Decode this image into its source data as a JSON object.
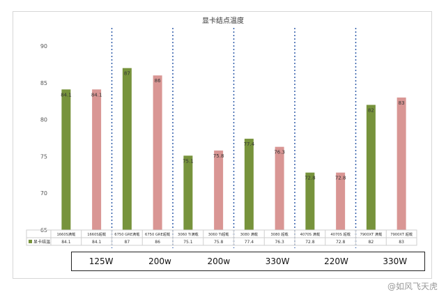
{
  "chart_data": {
    "type": "bar",
    "title": "显卡结点温度",
    "ylim": [
      65,
      90
    ],
    "yticks": [
      65,
      70,
      75,
      80,
      85,
      90
    ],
    "grid": false,
    "categories": [
      "1660S满载",
      "1660S超载",
      "6750 GRE满载",
      "6750 GRE超载",
      "3060 Ti满载",
      "3060 Ti超载",
      "3080 满载",
      "3080 超载",
      "4070S 满载",
      "4070S 超载",
      "7900XT 满载",
      "7900XT 超载"
    ],
    "series": [
      {
        "name": "显卡结温",
        "values": [
          84.1,
          84.1,
          87,
          86,
          75.1,
          75.8,
          77.4,
          76.3,
          72.8,
          72.8,
          82,
          83
        ]
      }
    ],
    "data_labels": [
      "84.1",
      "84.1",
      "87",
      "86",
      "75.1",
      "75.8",
      "77.4",
      "76.3",
      "72.8",
      "72.8",
      "82",
      "83"
    ],
    "bar_colors": [
      "#77933c",
      "#d99694"
    ],
    "separator_color": "#2e5aa8"
  },
  "power_labels": [
    "125W",
    "200w",
    "200w",
    "330W",
    "220W",
    "330W"
  ],
  "watermark": "@如风飞天虎"
}
